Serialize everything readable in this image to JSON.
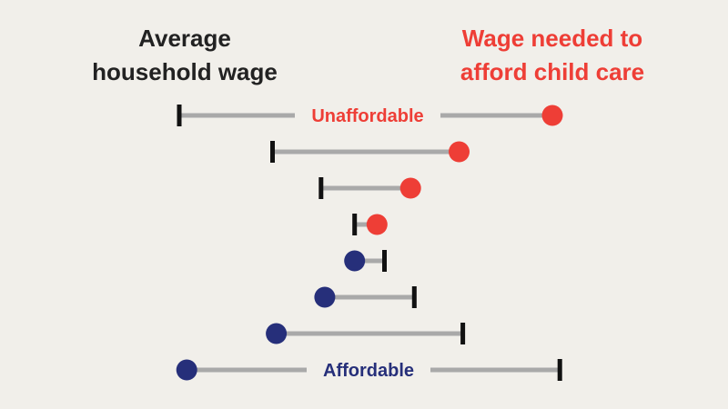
{
  "headings": {
    "left_line1": "Average",
    "left_line2": "household wage",
    "right_line1": "Wage needed to",
    "right_line2": "afford child care"
  },
  "labels": {
    "unaffordable": "Unaffordable",
    "affordable": "Affordable"
  },
  "colors": {
    "background": "#f1efea",
    "unaffordable": "#ee3e36",
    "affordable": "#262f7a",
    "line": "#a9a9a9",
    "tick": "#111111",
    "heading_left": "#222222"
  },
  "rows": [
    {
      "wage": 0.0,
      "needed": 1.0,
      "status": "unaffordable"
    },
    {
      "wage": 0.25,
      "needed": 0.75,
      "status": "unaffordable"
    },
    {
      "wage": 0.38,
      "needed": 0.62,
      "status": "unaffordable"
    },
    {
      "wage": 0.47,
      "needed": 0.53,
      "status": "unaffordable"
    },
    {
      "wage": 0.55,
      "needed": 0.47,
      "status": "affordable"
    },
    {
      "wage": 0.63,
      "needed": 0.39,
      "status": "affordable"
    },
    {
      "wage": 0.76,
      "needed": 0.26,
      "status": "affordable"
    },
    {
      "wage": 1.02,
      "needed": 0.02,
      "status": "affordable"
    }
  ]
}
